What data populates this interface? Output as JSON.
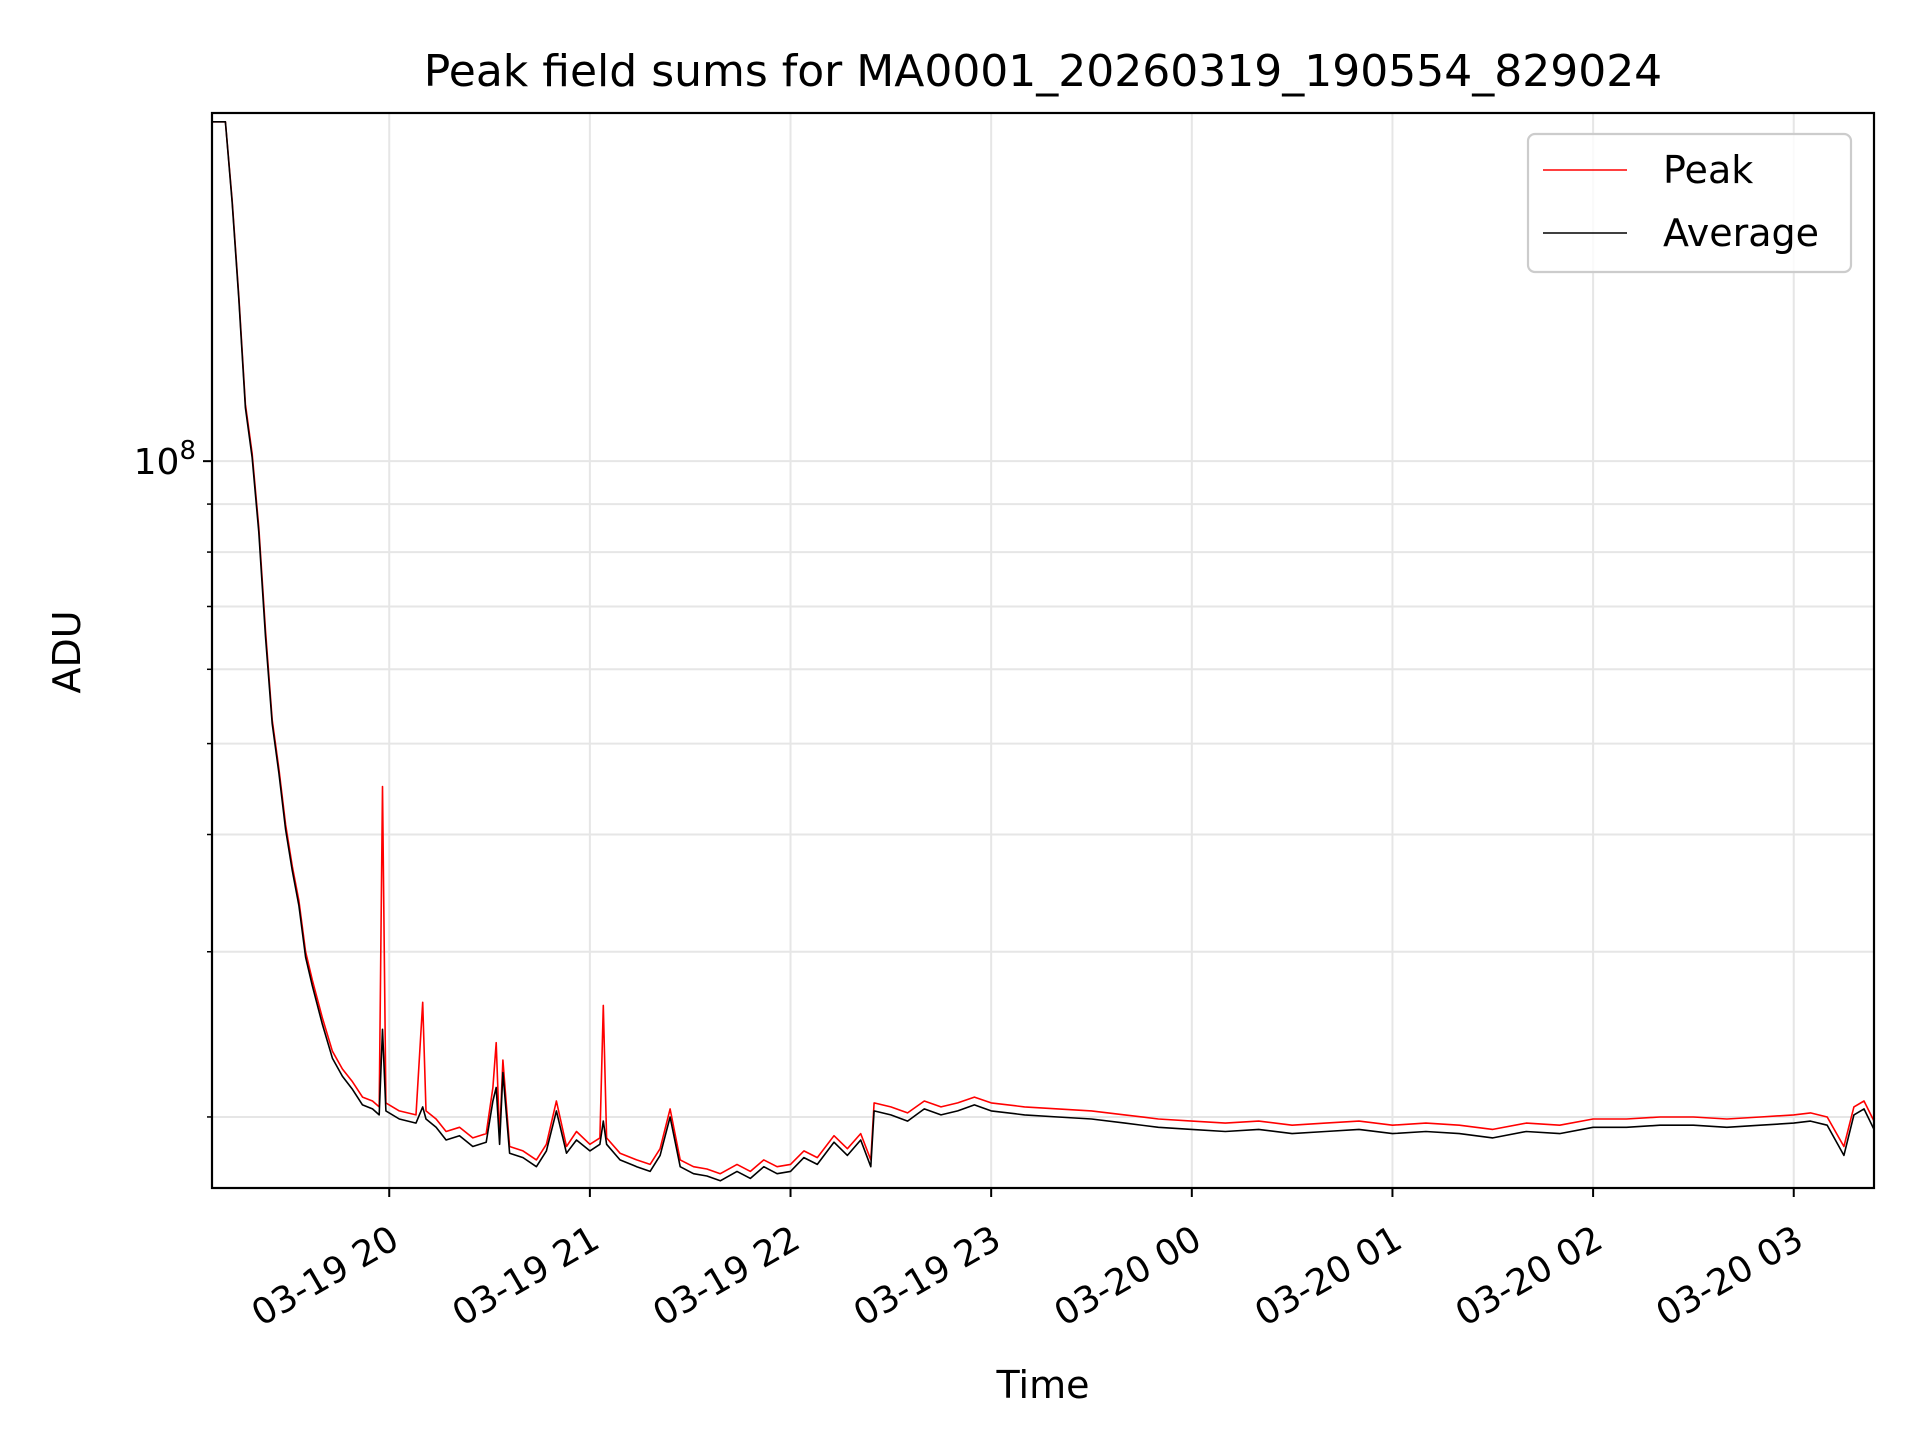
{
  "chart_data": {
    "type": "line",
    "title": "Peak field sums for MA0001_20260319_190554_829024",
    "xlabel": "Time",
    "ylabel": "ADU",
    "y_scale": "log",
    "ylim": [
      16800000,
      235000000
    ],
    "xlim": [
      "2026-03-19 19:07",
      "2026-03-20 03:24"
    ],
    "x_ticks": [
      {
        "time": "2026-03-19 20:00",
        "label": "03-19 20"
      },
      {
        "time": "2026-03-19 21:00",
        "label": "03-19 21"
      },
      {
        "time": "2026-03-19 22:00",
        "label": "03-19 22"
      },
      {
        "time": "2026-03-19 23:00",
        "label": "03-19 23"
      },
      {
        "time": "2026-03-20 00:00",
        "label": "03-20 00"
      },
      {
        "time": "2026-03-20 01:00",
        "label": "03-20 01"
      },
      {
        "time": "2026-03-20 02:00",
        "label": "03-20 02"
      },
      {
        "time": "2026-03-20 03:00",
        "label": "03-20 03"
      }
    ],
    "y_ticks": [
      {
        "value": 100000000,
        "base": "10",
        "exp": "8"
      }
    ],
    "grid": true,
    "legend_position": "top-right",
    "series": [
      {
        "name": "Peak",
        "color": "#ff0000",
        "points": [
          [
            "2026-03-19 19:07",
            230000000
          ],
          [
            "2026-03-19 19:09",
            230000000
          ],
          [
            "2026-03-19 19:11",
            230000000
          ],
          [
            "2026-03-19 19:13",
            190000000
          ],
          [
            "2026-03-19 19:15",
            150000000
          ],
          [
            "2026-03-19 19:17",
            115000000
          ],
          [
            "2026-03-19 19:19",
            102000000
          ],
          [
            "2026-03-19 19:21",
            85000000
          ],
          [
            "2026-03-19 19:23",
            66000000
          ],
          [
            "2026-03-19 19:25",
            53000000
          ],
          [
            "2026-03-19 19:27",
            47000000
          ],
          [
            "2026-03-19 19:29",
            41000000
          ],
          [
            "2026-03-19 19:31",
            37000000
          ],
          [
            "2026-03-19 19:33",
            34000000
          ],
          [
            "2026-03-19 19:35",
            30000000
          ],
          [
            "2026-03-19 19:37",
            28000000
          ],
          [
            "2026-03-19 19:40",
            25500000
          ],
          [
            "2026-03-19 19:43",
            23500000
          ],
          [
            "2026-03-19 19:46",
            22500000
          ],
          [
            "2026-03-19 19:49",
            21800000
          ],
          [
            "2026-03-19 19:52",
            21000000
          ],
          [
            "2026-03-19 19:55",
            20800000
          ],
          [
            "2026-03-19 19:57",
            20500000
          ],
          [
            "2026-03-19 19:58",
            45000000
          ],
          [
            "2026-03-19 19:59",
            20700000
          ],
          [
            "2026-03-19 20:03",
            20300000
          ],
          [
            "2026-03-19 20:08",
            20100000
          ],
          [
            "2026-03-19 20:10",
            26500000
          ],
          [
            "2026-03-19 20:11",
            20300000
          ],
          [
            "2026-03-19 20:14",
            19900000
          ],
          [
            "2026-03-19 20:17",
            19300000
          ],
          [
            "2026-03-19 20:21",
            19500000
          ],
          [
            "2026-03-19 20:25",
            19000000
          ],
          [
            "2026-03-19 20:29",
            19200000
          ],
          [
            "2026-03-19 20:31",
            21500000
          ],
          [
            "2026-03-19 20:32",
            24000000
          ],
          [
            "2026-03-19 20:33",
            19000000
          ],
          [
            "2026-03-19 20:34",
            23000000
          ],
          [
            "2026-03-19 20:36",
            18600000
          ],
          [
            "2026-03-19 20:40",
            18400000
          ],
          [
            "2026-03-19 20:44",
            18000000
          ],
          [
            "2026-03-19 20:47",
            18700000
          ],
          [
            "2026-03-19 20:50",
            20800000
          ],
          [
            "2026-03-19 20:53",
            18600000
          ],
          [
            "2026-03-19 20:56",
            19300000
          ],
          [
            "2026-03-19 21:00",
            18700000
          ],
          [
            "2026-03-19 21:03",
            19000000
          ],
          [
            "2026-03-19 21:04",
            26300000
          ],
          [
            "2026-03-19 21:05",
            19000000
          ],
          [
            "2026-03-19 21:09",
            18300000
          ],
          [
            "2026-03-19 21:14",
            18000000
          ],
          [
            "2026-03-19 21:18",
            17800000
          ],
          [
            "2026-03-19 21:21",
            18500000
          ],
          [
            "2026-03-19 21:24",
            20400000
          ],
          [
            "2026-03-19 21:27",
            18000000
          ],
          [
            "2026-03-19 21:31",
            17700000
          ],
          [
            "2026-03-19 21:35",
            17600000
          ],
          [
            "2026-03-19 21:39",
            17400000
          ],
          [
            "2026-03-19 21:44",
            17800000
          ],
          [
            "2026-03-19 21:48",
            17500000
          ],
          [
            "2026-03-19 21:52",
            18000000
          ],
          [
            "2026-03-19 21:56",
            17700000
          ],
          [
            "2026-03-19 22:00",
            17800000
          ],
          [
            "2026-03-19 22:04",
            18400000
          ],
          [
            "2026-03-19 22:08",
            18100000
          ],
          [
            "2026-03-19 22:13",
            19100000
          ],
          [
            "2026-03-19 22:17",
            18500000
          ],
          [
            "2026-03-19 22:21",
            19200000
          ],
          [
            "2026-03-19 22:24",
            18000000
          ],
          [
            "2026-03-19 22:25",
            20700000
          ],
          [
            "2026-03-19 22:30",
            20500000
          ],
          [
            "2026-03-19 22:35",
            20200000
          ],
          [
            "2026-03-19 22:40",
            20800000
          ],
          [
            "2026-03-19 22:45",
            20500000
          ],
          [
            "2026-03-19 22:50",
            20700000
          ],
          [
            "2026-03-19 22:55",
            21000000
          ],
          [
            "2026-03-19 23:00",
            20700000
          ],
          [
            "2026-03-19 23:10",
            20500000
          ],
          [
            "2026-03-19 23:20",
            20400000
          ],
          [
            "2026-03-19 23:30",
            20300000
          ],
          [
            "2026-03-19 23:40",
            20100000
          ],
          [
            "2026-03-19 23:50",
            19900000
          ],
          [
            "2026-03-20 00:00",
            19800000
          ],
          [
            "2026-03-20 00:10",
            19700000
          ],
          [
            "2026-03-20 00:20",
            19800000
          ],
          [
            "2026-03-20 00:30",
            19600000
          ],
          [
            "2026-03-20 00:40",
            19700000
          ],
          [
            "2026-03-20 00:50",
            19800000
          ],
          [
            "2026-03-20 01:00",
            19600000
          ],
          [
            "2026-03-20 01:10",
            19700000
          ],
          [
            "2026-03-20 01:20",
            19600000
          ],
          [
            "2026-03-20 01:30",
            19400000
          ],
          [
            "2026-03-20 01:40",
            19700000
          ],
          [
            "2026-03-20 01:50",
            19600000
          ],
          [
            "2026-03-20 02:00",
            19900000
          ],
          [
            "2026-03-20 02:10",
            19900000
          ],
          [
            "2026-03-20 02:20",
            20000000
          ],
          [
            "2026-03-20 02:30",
            20000000
          ],
          [
            "2026-03-20 02:40",
            19900000
          ],
          [
            "2026-03-20 02:50",
            20000000
          ],
          [
            "2026-03-20 03:00",
            20100000
          ],
          [
            "2026-03-20 03:05",
            20200000
          ],
          [
            "2026-03-20 03:10",
            20000000
          ],
          [
            "2026-03-20 03:15",
            18600000
          ],
          [
            "2026-03-20 03:18",
            20500000
          ],
          [
            "2026-03-20 03:21",
            20800000
          ],
          [
            "2026-03-20 03:24",
            19800000
          ]
        ]
      },
      {
        "name": "Average",
        "color": "#000000",
        "points": [
          [
            "2026-03-19 19:07",
            230000000
          ],
          [
            "2026-03-19 19:09",
            230000000
          ],
          [
            "2026-03-19 19:11",
            230000000
          ],
          [
            "2026-03-19 19:13",
            189000000
          ],
          [
            "2026-03-19 19:15",
            149000000
          ],
          [
            "2026-03-19 19:17",
            114000000
          ],
          [
            "2026-03-19 19:19",
            101000000
          ],
          [
            "2026-03-19 19:21",
            84000000
          ],
          [
            "2026-03-19 19:23",
            65000000
          ],
          [
            "2026-03-19 19:25",
            52500000
          ],
          [
            "2026-03-19 19:27",
            46500000
          ],
          [
            "2026-03-19 19:29",
            40500000
          ],
          [
            "2026-03-19 19:31",
            36600000
          ],
          [
            "2026-03-19 19:33",
            33600000
          ],
          [
            "2026-03-19 19:35",
            29600000
          ],
          [
            "2026-03-19 19:37",
            27600000
          ],
          [
            "2026-03-19 19:40",
            25100000
          ],
          [
            "2026-03-19 19:43",
            23100000
          ],
          [
            "2026-03-19 19:46",
            22100000
          ],
          [
            "2026-03-19 19:49",
            21400000
          ],
          [
            "2026-03-19 19:52",
            20600000
          ],
          [
            "2026-03-19 19:55",
            20400000
          ],
          [
            "2026-03-19 19:57",
            20100000
          ],
          [
            "2026-03-19 19:58",
            24800000
          ],
          [
            "2026-03-19 19:59",
            20300000
          ],
          [
            "2026-03-19 20:03",
            19900000
          ],
          [
            "2026-03-19 20:08",
            19700000
          ],
          [
            "2026-03-19 20:10",
            20500000
          ],
          [
            "2026-03-19 20:11",
            19900000
          ],
          [
            "2026-03-19 20:14",
            19500000
          ],
          [
            "2026-03-19 20:17",
            18900000
          ],
          [
            "2026-03-19 20:21",
            19100000
          ],
          [
            "2026-03-19 20:25",
            18600000
          ],
          [
            "2026-03-19 20:29",
            18800000
          ],
          [
            "2026-03-19 20:31",
            20800000
          ],
          [
            "2026-03-19 20:32",
            21500000
          ],
          [
            "2026-03-19 20:33",
            18700000
          ],
          [
            "2026-03-19 20:34",
            22300000
          ],
          [
            "2026-03-19 20:36",
            18300000
          ],
          [
            "2026-03-19 20:40",
            18100000
          ],
          [
            "2026-03-19 20:44",
            17700000
          ],
          [
            "2026-03-19 20:47",
            18400000
          ],
          [
            "2026-03-19 20:50",
            20300000
          ],
          [
            "2026-03-19 20:53",
            18300000
          ],
          [
            "2026-03-19 20:56",
            18900000
          ],
          [
            "2026-03-19 21:00",
            18400000
          ],
          [
            "2026-03-19 21:03",
            18700000
          ],
          [
            "2026-03-19 21:04",
            19800000
          ],
          [
            "2026-03-19 21:05",
            18700000
          ],
          [
            "2026-03-19 21:09",
            18000000
          ],
          [
            "2026-03-19 21:14",
            17700000
          ],
          [
            "2026-03-19 21:18",
            17500000
          ],
          [
            "2026-03-19 21:21",
            18200000
          ],
          [
            "2026-03-19 21:24",
            20000000
          ],
          [
            "2026-03-19 21:27",
            17700000
          ],
          [
            "2026-03-19 21:31",
            17400000
          ],
          [
            "2026-03-19 21:35",
            17300000
          ],
          [
            "2026-03-19 21:39",
            17100000
          ],
          [
            "2026-03-19 21:44",
            17500000
          ],
          [
            "2026-03-19 21:48",
            17200000
          ],
          [
            "2026-03-19 21:52",
            17700000
          ],
          [
            "2026-03-19 21:56",
            17400000
          ],
          [
            "2026-03-19 22:00",
            17500000
          ],
          [
            "2026-03-19 22:04",
            18100000
          ],
          [
            "2026-03-19 22:08",
            17800000
          ],
          [
            "2026-03-19 22:13",
            18800000
          ],
          [
            "2026-03-19 22:17",
            18200000
          ],
          [
            "2026-03-19 22:21",
            18900000
          ],
          [
            "2026-03-19 22:24",
            17700000
          ],
          [
            "2026-03-19 22:25",
            20300000
          ],
          [
            "2026-03-19 22:30",
            20100000
          ],
          [
            "2026-03-19 22:35",
            19800000
          ],
          [
            "2026-03-19 22:40",
            20400000
          ],
          [
            "2026-03-19 22:45",
            20100000
          ],
          [
            "2026-03-19 22:50",
            20300000
          ],
          [
            "2026-03-19 22:55",
            20600000
          ],
          [
            "2026-03-19 23:00",
            20300000
          ],
          [
            "2026-03-19 23:10",
            20100000
          ],
          [
            "2026-03-19 23:20",
            20000000
          ],
          [
            "2026-03-19 23:30",
            19900000
          ],
          [
            "2026-03-19 23:40",
            19700000
          ],
          [
            "2026-03-19 23:50",
            19500000
          ],
          [
            "2026-03-20 00:00",
            19400000
          ],
          [
            "2026-03-20 00:10",
            19300000
          ],
          [
            "2026-03-20 00:20",
            19400000
          ],
          [
            "2026-03-20 00:30",
            19200000
          ],
          [
            "2026-03-20 00:40",
            19300000
          ],
          [
            "2026-03-20 00:50",
            19400000
          ],
          [
            "2026-03-20 01:00",
            19200000
          ],
          [
            "2026-03-20 01:10",
            19300000
          ],
          [
            "2026-03-20 01:20",
            19200000
          ],
          [
            "2026-03-20 01:30",
            19000000
          ],
          [
            "2026-03-20 01:40",
            19300000
          ],
          [
            "2026-03-20 01:50",
            19200000
          ],
          [
            "2026-03-20 02:00",
            19500000
          ],
          [
            "2026-03-20 02:10",
            19500000
          ],
          [
            "2026-03-20 02:20",
            19600000
          ],
          [
            "2026-03-20 02:30",
            19600000
          ],
          [
            "2026-03-20 02:40",
            19500000
          ],
          [
            "2026-03-20 02:50",
            19600000
          ],
          [
            "2026-03-20 03:00",
            19700000
          ],
          [
            "2026-03-20 03:05",
            19800000
          ],
          [
            "2026-03-20 03:10",
            19600000
          ],
          [
            "2026-03-20 03:15",
            18200000
          ],
          [
            "2026-03-20 03:18",
            20100000
          ],
          [
            "2026-03-20 03:21",
            20400000
          ],
          [
            "2026-03-20 03:24",
            19400000
          ]
        ]
      }
    ]
  }
}
